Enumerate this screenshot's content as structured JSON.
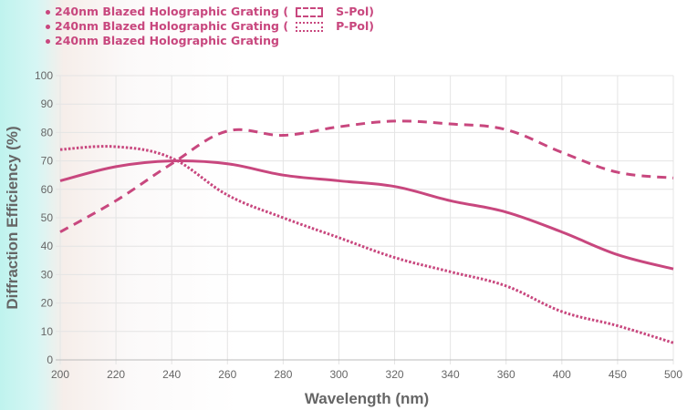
{
  "chart_data": {
    "type": "line",
    "title": "",
    "xlabel": "Wavelength (nm)",
    "ylabel": "Diffraction Efficiency (%)",
    "categories": [
      "200",
      "220",
      "240",
      "260",
      "280",
      "300",
      "320",
      "340",
      "360",
      "400",
      "450",
      "500"
    ],
    "yticks": [
      "0",
      "10",
      "20",
      "30",
      "40",
      "50",
      "60",
      "70",
      "80",
      "90",
      "100"
    ],
    "ylim": [
      0,
      100
    ],
    "grid": true,
    "legend_position": "top-left",
    "color": "#c8477e",
    "series": [
      {
        "name": "240nm Blazed Holographic Grating ( S-Pol)",
        "legend_prefix": "240nm Blazed Holographic Grating (",
        "legend_suffix": "S-Pol)",
        "style": "dashed",
        "values": [
          45,
          56,
          69,
          80.5,
          79,
          82,
          84,
          83,
          81,
          73,
          66,
          64
        ]
      },
      {
        "name": "240nm Blazed Holographic Grating ( P-Pol)",
        "legend_prefix": "240nm Blazed Holographic Grating (",
        "legend_suffix": "P-Pol)",
        "style": "dotted",
        "values": [
          74,
          75,
          71,
          58,
          50,
          43,
          36,
          31,
          26,
          17,
          12,
          6
        ]
      },
      {
        "name": "240nm Blazed Holographic Grating",
        "legend_prefix": "240nm Blazed Holographic Grating",
        "legend_suffix": "",
        "style": "solid",
        "values": [
          63,
          68,
          70,
          69,
          65,
          63,
          61,
          56,
          52,
          45,
          37,
          32
        ]
      }
    ]
  }
}
